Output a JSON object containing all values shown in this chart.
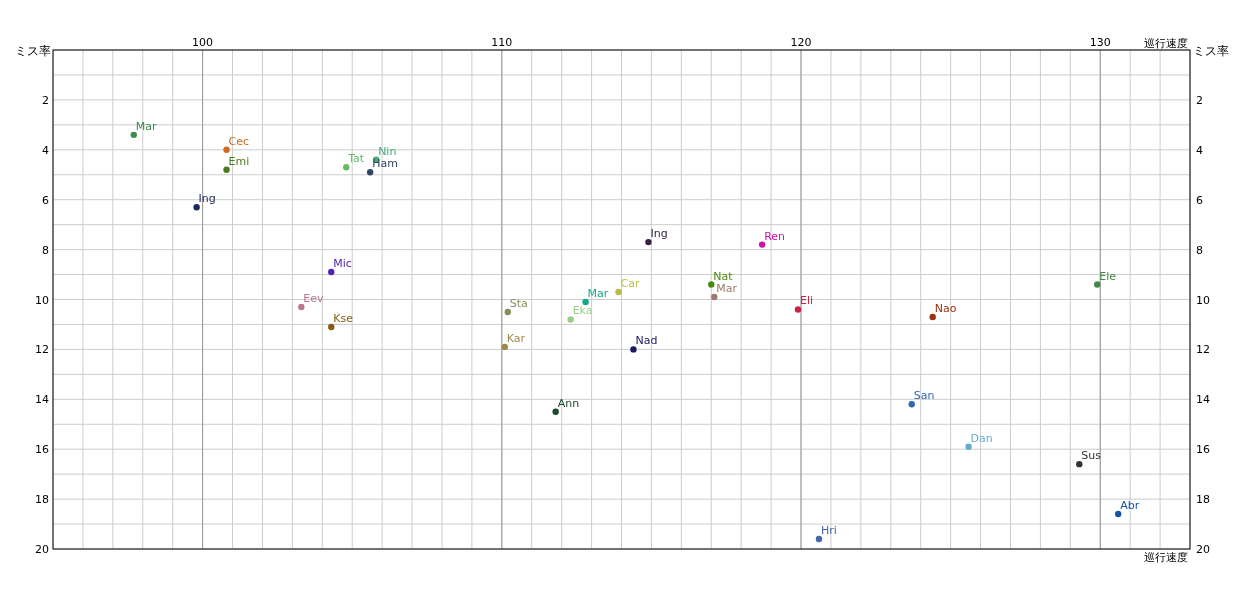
{
  "chart_data": {
    "type": "scatter",
    "xlabel": "巡行速度",
    "ylabel": "ミス率",
    "y2label": "ミス率",
    "xlim": [
      95,
      133
    ],
    "xticks": [
      100,
      110,
      120,
      130
    ],
    "annotations": [
      "巡行速度"
    ],
    "ylim": [
      20,
      0
    ],
    "yticks": [
      2,
      4,
      6,
      8,
      10,
      12,
      14,
      16,
      18,
      20
    ],
    "y2lim": [
      20,
      0
    ],
    "y2ticks": [
      2,
      4,
      6,
      8,
      10,
      12,
      14,
      16,
      18,
      20
    ],
    "grid": true,
    "legend": false,
    "marker": "circle",
    "series": [
      {
        "name": "Mar",
        "color": "#3c8c4c",
        "x": [
          97.7
        ],
        "values": [
          3.4
        ]
      },
      {
        "name": "Cec",
        "color": "#d2691e",
        "x": [
          100.8
        ],
        "values": [
          4.0
        ]
      },
      {
        "name": "Emi",
        "color": "#4a7a1a",
        "x": [
          100.8
        ],
        "values": [
          4.8
        ]
      },
      {
        "name": "Ing",
        "color": "#1a2a5a",
        "x": [
          99.8
        ],
        "values": [
          6.3
        ]
      },
      {
        "name": "Tat",
        "color": "#66bb66",
        "x": [
          104.8
        ],
        "values": [
          4.7
        ]
      },
      {
        "name": "Nin",
        "color": "#44aa77",
        "x": [
          105.8
        ],
        "values": [
          4.4
        ]
      },
      {
        "name": "Ham",
        "color": "#334466",
        "x": [
          105.6
        ],
        "values": [
          4.9
        ]
      },
      {
        "name": "Mic",
        "color": "#5522aa",
        "x": [
          104.3
        ],
        "values": [
          8.9
        ]
      },
      {
        "name": "Eev",
        "color": "#bb7788",
        "x": [
          103.3
        ],
        "values": [
          10.3
        ]
      },
      {
        "name": "Kse",
        "color": "#8a5a10",
        "x": [
          104.3
        ],
        "values": [
          11.1
        ]
      },
      {
        "name": "Sta",
        "color": "#8a8a5a",
        "x": [
          110.2
        ],
        "values": [
          10.5
        ]
      },
      {
        "name": "Kar",
        "color": "#a08a4a",
        "x": [
          110.1
        ],
        "values": [
          11.9
        ]
      },
      {
        "name": "Eka",
        "color": "#99cc88",
        "x": [
          112.3
        ],
        "values": [
          10.8
        ]
      },
      {
        "name": "Mar",
        "color": "#11aa88",
        "x": [
          112.8
        ],
        "values": [
          10.1
        ]
      },
      {
        "name": "Car",
        "color": "#bbbb44",
        "x": [
          113.9
        ],
        "values": [
          9.7
        ]
      },
      {
        "name": "Ing",
        "color": "#332244",
        "x": [
          114.9
        ],
        "values": [
          7.7
        ]
      },
      {
        "name": "Nad",
        "color": "#1a1a66",
        "x": [
          114.4
        ],
        "values": [
          12.0
        ]
      },
      {
        "name": "Ann",
        "color": "#1a4a2a",
        "x": [
          111.8
        ],
        "values": [
          14.5
        ]
      },
      {
        "name": "Nat",
        "color": "#4a8a0a",
        "x": [
          117.0
        ],
        "values": [
          9.4
        ]
      },
      {
        "name": "Mar",
        "color": "#9a7a6a",
        "x": [
          117.1
        ],
        "values": [
          9.9
        ]
      },
      {
        "name": "Ren",
        "color": "#cc11aa",
        "x": [
          118.7
        ],
        "values": [
          7.8
        ]
      },
      {
        "name": "Eli",
        "color": "#cc2244",
        "x": [
          119.9
        ],
        "values": [
          10.4
        ]
      },
      {
        "name": "Nao",
        "color": "#993311",
        "x": [
          124.4
        ],
        "values": [
          10.7
        ]
      },
      {
        "name": "San",
        "color": "#3366aa",
        "x": [
          123.7
        ],
        "values": [
          14.2
        ]
      },
      {
        "name": "Dan",
        "color": "#66aacc",
        "x": [
          125.6
        ],
        "values": [
          15.9
        ]
      },
      {
        "name": "Sus",
        "color": "#333333",
        "x": [
          129.3
        ],
        "values": [
          16.6
        ]
      },
      {
        "name": "Abr",
        "color": "#1155aa",
        "x": [
          130.6
        ],
        "values": [
          18.6
        ]
      },
      {
        "name": "Hri",
        "color": "#4466aa",
        "x": [
          120.6
        ],
        "values": [
          19.6
        ]
      },
      {
        "name": "Ele",
        "color": "#448844",
        "x": [
          129.9
        ],
        "values": [
          9.4
        ]
      }
    ]
  }
}
